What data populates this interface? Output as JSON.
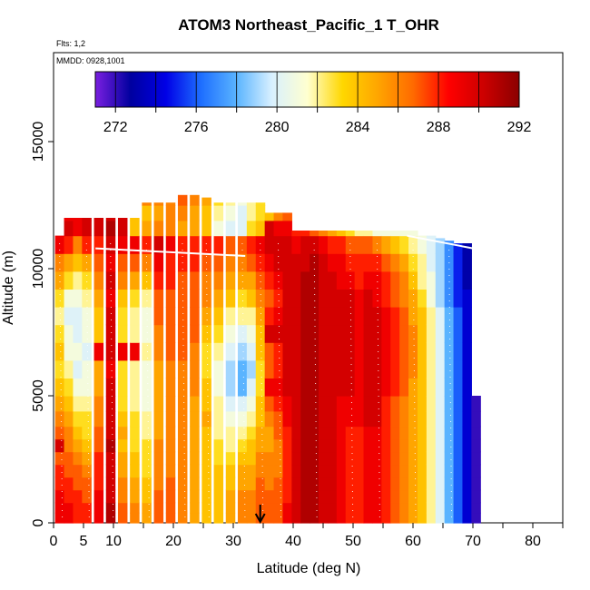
{
  "chart_data": {
    "type": "heatmap",
    "title": "ATOM3 Northeast_Pacific_1 T_OHR",
    "annotations": [
      "Flts: 1,2",
      "MMDD: 0928,1001"
    ],
    "xlabel": "Latitude (deg N)",
    "ylabel": "Altitude (m)",
    "xlim": [
      0,
      85
    ],
    "ylim": [
      0,
      18500
    ],
    "xticks": [
      0,
      5,
      10,
      20,
      30,
      40,
      50,
      60,
      70,
      80
    ],
    "xtick_labels": [
      "0",
      "5",
      "10",
      "20",
      "30",
      "40",
      "50",
      "60",
      "70",
      "80"
    ],
    "xminor_ticks": [
      15,
      25,
      35,
      45,
      55,
      65,
      75,
      85
    ],
    "yticks": [
      0,
      5000,
      10000,
      15000
    ],
    "ytick_labels": [
      "0",
      "5000",
      "10000",
      "15000"
    ],
    "colorbar": {
      "min": 271,
      "max": 292,
      "ticks": [
        272,
        276,
        280,
        284,
        288,
        292
      ],
      "tick_labels": [
        "272",
        "276",
        "280",
        "284",
        "288",
        "292"
      ],
      "gradient": [
        "#7a1fe0",
        "#00009f",
        "#0000e6",
        "#1e6fff",
        "#5ab4ff",
        "#d8f0ff",
        "#ffffd0",
        "#ffd700",
        "#ffa500",
        "#ff6a00",
        "#ff0000",
        "#cc0000",
        "#8b0000"
      ]
    },
    "arrow_marker_lat": 34.5,
    "altitude_bands": [
      0,
      400,
      800,
      1300,
      1800,
      2300,
      2800,
      3300,
      3800,
      4400,
      5000,
      5700,
      6400,
      7100,
      7800,
      8500,
      9200,
      9900,
      10600,
      11300,
      11900,
      12500,
      12900
    ],
    "columns": [
      {
        "lat": 1,
        "ztop": 11300,
        "vals": [
          289,
          289,
          289,
          288,
          288,
          287,
          290,
          287,
          286,
          285,
          284,
          283,
          284,
          283,
          282,
          283,
          285,
          286,
          289,
          290
        ]
      },
      {
        "lat": 2.5,
        "ztop": 12000,
        "vals": [
          289,
          289,
          288,
          288,
          287,
          287,
          286,
          286,
          285,
          284,
          283,
          282,
          281,
          281,
          280,
          281,
          283,
          285,
          288,
          290,
          289
        ]
      },
      {
        "lat": 4,
        "ztop": 12000,
        "vals": [
          288,
          288,
          288,
          287,
          287,
          286,
          285,
          284,
          283,
          282,
          281,
          280,
          281,
          280,
          280,
          281,
          282,
          284,
          286,
          289,
          289
        ]
      },
      {
        "lat": 5.5,
        "ztop": 12000,
        "vals": [
          288,
          288,
          287,
          287,
          286,
          285,
          284,
          283,
          283,
          282,
          281,
          281,
          280,
          281,
          281,
          282,
          283,
          285,
          288,
          290,
          290
        ]
      },
      {
        "lat": 7.5,
        "ztop": 12000,
        "vals": [
          289,
          289,
          289,
          288,
          288,
          288,
          287,
          287,
          286,
          286,
          285,
          285,
          289,
          284,
          284,
          285,
          286,
          287,
          288,
          290,
          290
        ]
      },
      {
        "lat": 9.5,
        "ztop": 12000,
        "vals": [
          291,
          291,
          290,
          290,
          290,
          290,
          291,
          290,
          290,
          290,
          290,
          289,
          290,
          290,
          290,
          289,
          290,
          289,
          290,
          291,
          290
        ]
      },
      {
        "lat": 11.5,
        "ztop": 12000,
        "vals": [
          287,
          287,
          286,
          286,
          285,
          285,
          284,
          285,
          284,
          283,
          283,
          283,
          289,
          283,
          283,
          284,
          286,
          287,
          289,
          290,
          290
        ]
      },
      {
        "lat": 13.5,
        "ztop": 12000,
        "vals": [
          286,
          286,
          285,
          285,
          284,
          284,
          283,
          283,
          283,
          282,
          282,
          282,
          289,
          282,
          282,
          283,
          285,
          287,
          289,
          284,
          284
        ]
      },
      {
        "lat": 15.5,
        "ztop": 12600,
        "vals": [
          285,
          285,
          284,
          284,
          283,
          283,
          283,
          282,
          282,
          281,
          281,
          281,
          282,
          281,
          281,
          282,
          284,
          286,
          288,
          285,
          284,
          286
        ]
      },
      {
        "lat": 17.5,
        "ztop": 12600,
        "vals": [
          287,
          287,
          287,
          286,
          286,
          286,
          286,
          285,
          285,
          285,
          285,
          285,
          286,
          286,
          287,
          287,
          288,
          289,
          290,
          286,
          285,
          286
        ]
      },
      {
        "lat": 19.5,
        "ztop": 12600,
        "vals": [
          287,
          287,
          287,
          287,
          286,
          286,
          286,
          286,
          286,
          286,
          286,
          286,
          287,
          287,
          287,
          287,
          288,
          288,
          289,
          286,
          286,
          286
        ]
      },
      {
        "lat": 21.5,
        "ztop": 13000,
        "vals": [
          286,
          286,
          286,
          286,
          286,
          286,
          286,
          286,
          286,
          286,
          286,
          286,
          287,
          287,
          287,
          287,
          287,
          288,
          288,
          285,
          286,
          287,
          287
        ]
      },
      {
        "lat": 23.5,
        "ztop": 13000,
        "vals": [
          285,
          285,
          285,
          285,
          285,
          285,
          285,
          285,
          285,
          285,
          286,
          286,
          286,
          287,
          287,
          287,
          287,
          288,
          288,
          285,
          285,
          286,
          287
        ]
      },
      {
        "lat": 25.5,
        "ztop": 12800,
        "vals": [
          284,
          284,
          284,
          284,
          284,
          284,
          284,
          284,
          285,
          284,
          284,
          283,
          283,
          284,
          285,
          286,
          286,
          287,
          288,
          284,
          284,
          285
        ]
      },
      {
        "lat": 27.5,
        "ztop": 12600,
        "vals": [
          284,
          284,
          284,
          284,
          284,
          283,
          283,
          282,
          282,
          282,
          281,
          281,
          282,
          283,
          284,
          285,
          286,
          287,
          288,
          281,
          282,
          283
        ]
      },
      {
        "lat": 29.5,
        "ztop": 12600,
        "vals": [
          285,
          285,
          285,
          284,
          284,
          283,
          282,
          282,
          281,
          280,
          279,
          279,
          280,
          281,
          282,
          284,
          285,
          286,
          287,
          280,
          281,
          282
        ]
      },
      {
        "lat": 31.5,
        "ztop": 12600,
        "vals": [
          286,
          286,
          286,
          285,
          285,
          284,
          283,
          282,
          281,
          280,
          278,
          278,
          279,
          280,
          282,
          283,
          285,
          286,
          287,
          280,
          280,
          281
        ]
      },
      {
        "lat": 33,
        "ztop": 12600,
        "vals": [
          286,
          286,
          286,
          285,
          285,
          284,
          284,
          283,
          282,
          281,
          280,
          279,
          280,
          281,
          282,
          284,
          285,
          287,
          288,
          283,
          282,
          282
        ]
      },
      {
        "lat": 34.5,
        "ztop": 12600,
        "vals": [
          287,
          287,
          287,
          287,
          286,
          286,
          285,
          285,
          284,
          284,
          283,
          283,
          284,
          284,
          285,
          286,
          287,
          288,
          289,
          284,
          283,
          283
        ]
      },
      {
        "lat": 36,
        "ztop": 12200,
        "vals": [
          287,
          287,
          287,
          286,
          286,
          286,
          285,
          285,
          286,
          287,
          289,
          287,
          287,
          290,
          288,
          287,
          288,
          289,
          290,
          290,
          284
        ]
      },
      {
        "lat": 37.5,
        "ztop": 12200,
        "vals": [
          287,
          287,
          287,
          287,
          286,
          286,
          286,
          287,
          287,
          288,
          289,
          288,
          288,
          290,
          289,
          288,
          289,
          290,
          290,
          289,
          286
        ]
      },
      {
        "lat": 39,
        "ztop": 12200,
        "vals": [
          289,
          289,
          288,
          288,
          288,
          288,
          288,
          288,
          289,
          289,
          290,
          290,
          290,
          290,
          290,
          290,
          290,
          290,
          290,
          289,
          287
        ]
      },
      {
        "lat": 40.5,
        "ztop": 11500,
        "vals": [
          290,
          290,
          290,
          290,
          290,
          290,
          290,
          290,
          290,
          290,
          290,
          290,
          290,
          290,
          290,
          290,
          290,
          290,
          289,
          288
        ]
      },
      {
        "lat": 42,
        "ztop": 11500,
        "vals": [
          291,
          291,
          291,
          291,
          291,
          291,
          291,
          291,
          291,
          291,
          291,
          291,
          291,
          291,
          291,
          291,
          291,
          290,
          290,
          288
        ]
      },
      {
        "lat": 43.5,
        "ztop": 11500,
        "vals": [
          291,
          291,
          291,
          291,
          291,
          291,
          291,
          291,
          291,
          291,
          291,
          291,
          291,
          291,
          291,
          291,
          291,
          291,
          290,
          287
        ]
      },
      {
        "lat": 45,
        "ztop": 11500,
        "vals": [
          290,
          290,
          290,
          290,
          290,
          290,
          290,
          290,
          290,
          290,
          290,
          290,
          290,
          290,
          290,
          290,
          290,
          290,
          289,
          286
        ]
      },
      {
        "lat": 46.5,
        "ztop": 11500,
        "vals": [
          290,
          290,
          290,
          290,
          290,
          290,
          290,
          290,
          290,
          290,
          290,
          290,
          290,
          290,
          290,
          290,
          290,
          289,
          288,
          285
        ]
      },
      {
        "lat": 48,
        "ztop": 11500,
        "vals": [
          289,
          289,
          289,
          289,
          289,
          289,
          289,
          289,
          289,
          289,
          290,
          290,
          290,
          290,
          290,
          290,
          289,
          289,
          288,
          284
        ]
      },
      {
        "lat": 49.5,
        "ztop": 11500,
        "vals": [
          288,
          288,
          288,
          288,
          288,
          288,
          288,
          288,
          289,
          289,
          290,
          290,
          290,
          290,
          290,
          290,
          289,
          288,
          287,
          283
        ]
      },
      {
        "lat": 51,
        "ztop": 11500,
        "vals": [
          288,
          288,
          288,
          288,
          288,
          288,
          288,
          288,
          289,
          289,
          289,
          289,
          289,
          289,
          289,
          289,
          288,
          288,
          287,
          282
        ]
      },
      {
        "lat": 52.5,
        "ztop": 11500,
        "vals": [
          289,
          289,
          289,
          289,
          289,
          289,
          289,
          289,
          290,
          290,
          290,
          290,
          290,
          290,
          290,
          290,
          289,
          288,
          287,
          282
        ]
      },
      {
        "lat": 54,
        "ztop": 11500,
        "vals": [
          289,
          289,
          289,
          289,
          289,
          289,
          289,
          289,
          290,
          290,
          290,
          290,
          290,
          290,
          290,
          289,
          289,
          288,
          286,
          281
        ]
      },
      {
        "lat": 55.5,
        "ztop": 11500,
        "vals": [
          288,
          288,
          288,
          288,
          288,
          288,
          288,
          288,
          288,
          288,
          289,
          289,
          289,
          289,
          289,
          288,
          288,
          287,
          285,
          281
        ]
      },
      {
        "lat": 57,
        "ztop": 11500,
        "vals": [
          287,
          287,
          287,
          287,
          287,
          287,
          287,
          287,
          287,
          287,
          288,
          288,
          288,
          288,
          288,
          287,
          287,
          286,
          284,
          281
        ]
      },
      {
        "lat": 58.5,
        "ztop": 11500,
        "vals": [
          286,
          286,
          286,
          286,
          286,
          286,
          286,
          286,
          286,
          286,
          287,
          287,
          287,
          287,
          287,
          286,
          286,
          285,
          283,
          281
        ]
      },
      {
        "lat": 60,
        "ztop": 11500,
        "vals": [
          285,
          285,
          285,
          285,
          285,
          285,
          285,
          285,
          285,
          285,
          285,
          286,
          286,
          286,
          285,
          285,
          284,
          283,
          282,
          281
        ]
      },
      {
        "lat": 61.5,
        "ztop": 11300,
        "vals": [
          284,
          284,
          284,
          284,
          284,
          284,
          284,
          284,
          284,
          284,
          284,
          284,
          284,
          284,
          284,
          283,
          282,
          282,
          281,
          280
        ]
      },
      {
        "lat": 63,
        "ztop": 11300,
        "vals": [
          282,
          282,
          282,
          282,
          282,
          282,
          282,
          282,
          282,
          282,
          282,
          282,
          282,
          282,
          282,
          281,
          281,
          280,
          280,
          279
        ]
      },
      {
        "lat": 64.5,
        "ztop": 11200,
        "vals": [
          280,
          280,
          280,
          280,
          280,
          280,
          280,
          280,
          280,
          280,
          280,
          280,
          280,
          280,
          280,
          279,
          279,
          279,
          279,
          279
        ]
      },
      {
        "lat": 66,
        "ztop": 11100,
        "vals": [
          278,
          278,
          278,
          278,
          278,
          278,
          278,
          278,
          278,
          278,
          278,
          278,
          278,
          278,
          278,
          277,
          277,
          277,
          277,
          277
        ]
      },
      {
        "lat": 67.5,
        "ztop": 11000,
        "vals": [
          276,
          276,
          276,
          276,
          276,
          276,
          276,
          276,
          276,
          276,
          276,
          276,
          276,
          276,
          276,
          275,
          275,
          275,
          275,
          275
        ]
      },
      {
        "lat": 69,
        "ztop": 11000,
        "vals": [
          274,
          274,
          274,
          274,
          274,
          274,
          274,
          274,
          274,
          274,
          274,
          274,
          274,
          274,
          274,
          274,
          273,
          273,
          273,
          273
        ]
      },
      {
        "lat": 70.5,
        "ztop": 5000,
        "vals": [
          272,
          272,
          272,
          272,
          272,
          272,
          272,
          272,
          272,
          272
        ]
      }
    ],
    "column_half_width": 0.75,
    "column_starts": {
      "1": 1,
      "36": 0
    }
  }
}
